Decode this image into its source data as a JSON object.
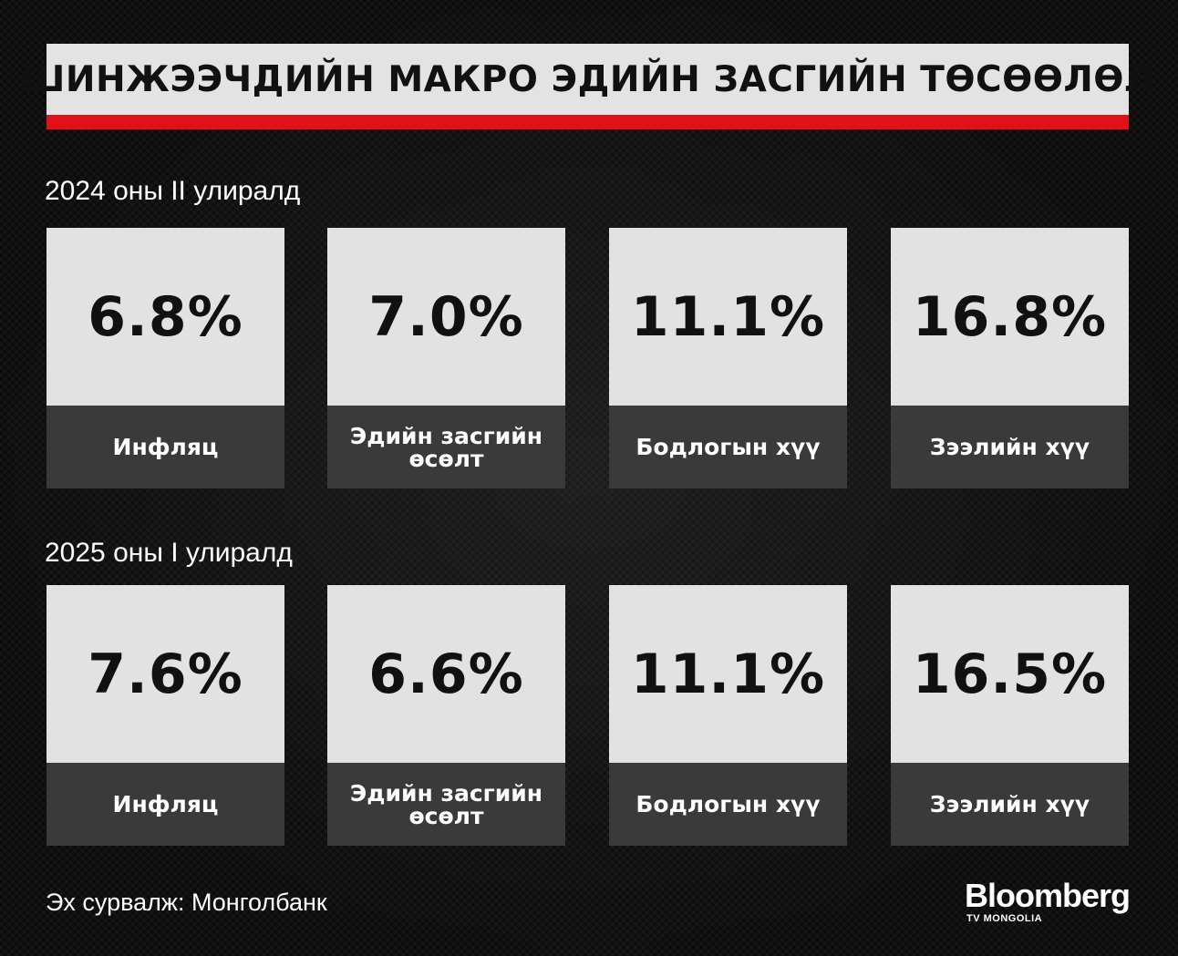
{
  "title": "ШИНЖЭЭЧДИЙН МАКРО ЭДИЙН ЗАСГИЙН ТӨСӨӨЛӨЛ",
  "colors": {
    "accent_bar": "#e01216",
    "card_value_bg": "#e2e2e2",
    "card_label_bg": "#3a3a3a",
    "background": "#0b0b0b"
  },
  "sections": [
    {
      "label": "2024 оны II улиралд",
      "cards": [
        {
          "value": "6.8%",
          "label": "Инфляц"
        },
        {
          "value": "7.0%",
          "label": "Эдийн засгийн өсөлт"
        },
        {
          "value": "11.1%",
          "label": "Бодлогын хүү"
        },
        {
          "value": "16.8%",
          "label": "Зээлийн хүү"
        }
      ]
    },
    {
      "label": "2025 оны I улиралд",
      "cards": [
        {
          "value": "7.6%",
          "label": "Инфляц"
        },
        {
          "value": "6.6%",
          "label": "Эдийн засгийн өсөлт"
        },
        {
          "value": "11.1%",
          "label": "Бодлогын хүү"
        },
        {
          "value": "16.5%",
          "label": "Зээлийн хүү"
        }
      ]
    }
  ],
  "source": "Эх сурвалж: Монголбанк",
  "logo": {
    "name": "Bloomberg",
    "subtitle": "TV MONGOLIA"
  }
}
